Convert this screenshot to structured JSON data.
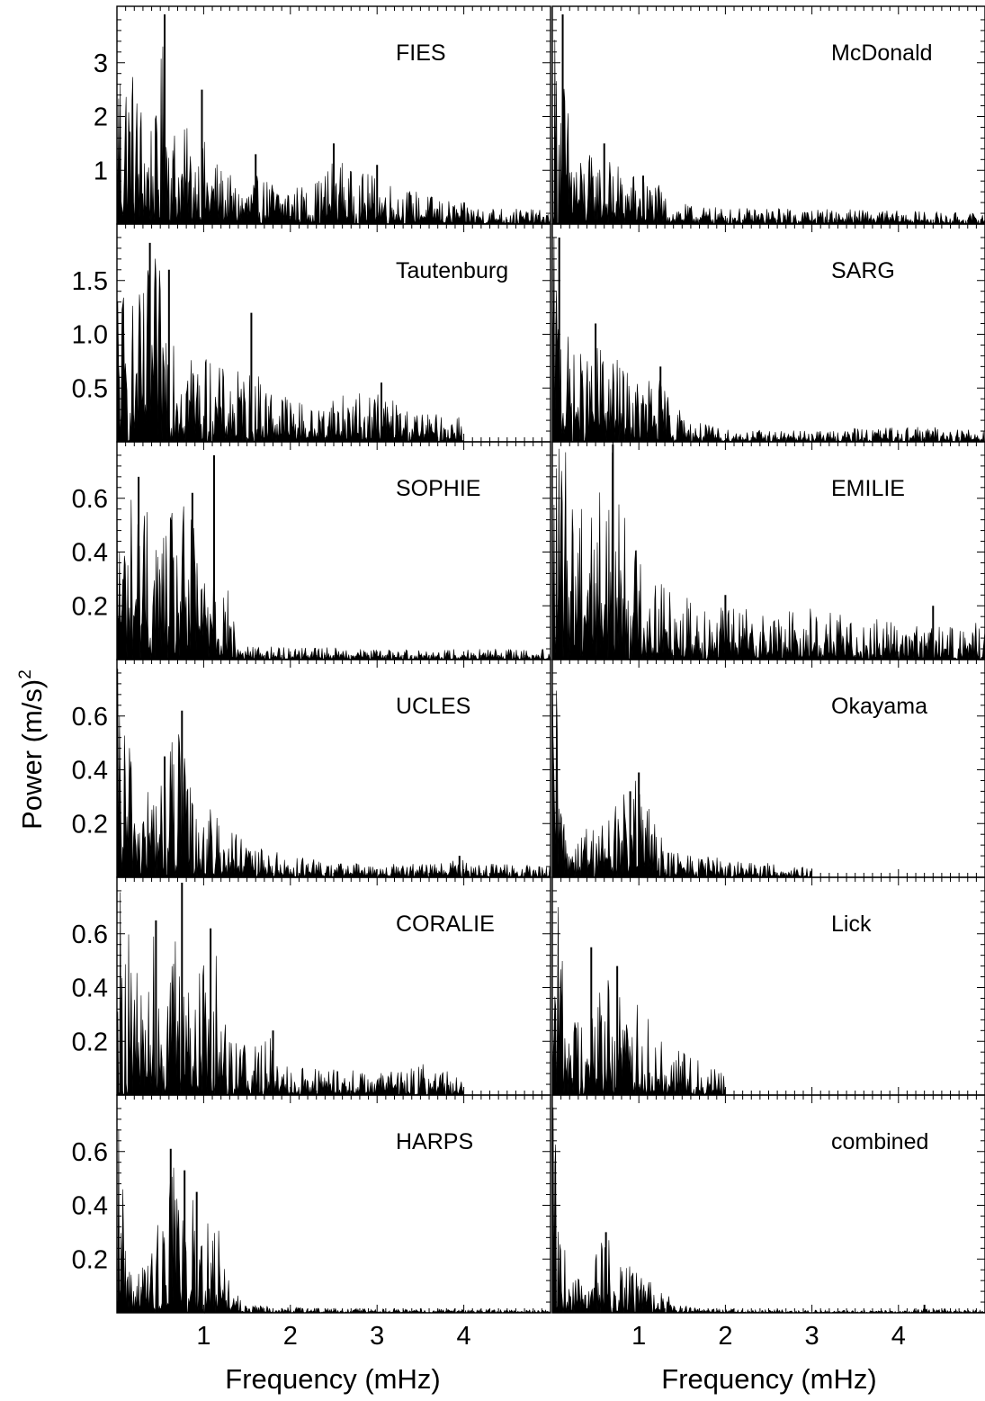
{
  "figure": {
    "ylabel": "Power (m/s)",
    "ylabel_superscript": "2",
    "xlabel_left": "Frequency (mHz)",
    "xlabel_right": "Frequency (mHz)",
    "x_tick_labels": [
      "1",
      "2",
      "3",
      "4"
    ]
  },
  "chart_data": [
    {
      "type": "line",
      "label": "FIES",
      "column": "left",
      "row": 0,
      "xlabel": "",
      "xlim": [
        0,
        5
      ],
      "ylim": [
        0,
        4.0
      ],
      "fmax": 5.0,
      "y_ticks": [
        1,
        2,
        3
      ],
      "y_tick_labels": [
        "1",
        "2",
        "3"
      ],
      "envelope": {
        "x": [
          0.0,
          0.1,
          0.2,
          0.3,
          0.45,
          0.55,
          0.65,
          0.8,
          1.0,
          1.2,
          1.4,
          1.6,
          1.8,
          2.0,
          2.2,
          2.4,
          2.5,
          2.7,
          2.9,
          3.1,
          3.3,
          3.5,
          3.8,
          4.2,
          4.6,
          5.0
        ],
        "y": [
          4.0,
          3.6,
          3.0,
          2.4,
          2.0,
          3.9,
          2.0,
          1.8,
          1.6,
          1.1,
          0.75,
          0.9,
          0.85,
          0.8,
          0.7,
          1.0,
          1.4,
          1.0,
          0.95,
          0.85,
          0.7,
          0.6,
          0.45,
          0.35,
          0.3,
          0.25
        ]
      },
      "peaks": [
        {
          "x": 0.55,
          "y": 3.9
        },
        {
          "x": 0.98,
          "y": 2.5
        },
        {
          "x": 1.6,
          "y": 1.3
        },
        {
          "x": 2.5,
          "y": 1.5
        },
        {
          "x": 3.0,
          "y": 1.1
        }
      ]
    },
    {
      "type": "line",
      "label": "McDonald",
      "column": "right",
      "row": 0,
      "xlabel": "",
      "xlim": [
        0,
        5
      ],
      "ylim": [
        0,
        4.0
      ],
      "fmax": 5.0,
      "y_ticks": [
        1,
        2,
        3
      ],
      "y_tick_labels": [],
      "envelope": {
        "x": [
          0.0,
          0.1,
          0.2,
          0.3,
          0.5,
          0.7,
          0.9,
          1.1,
          1.25,
          1.35,
          1.6,
          2.0,
          3.0,
          4.0,
          5.0
        ],
        "y": [
          4.0,
          3.5,
          2.0,
          1.4,
          1.3,
          1.2,
          1.0,
          0.9,
          0.7,
          0.45,
          0.35,
          0.3,
          0.3,
          0.25,
          0.2
        ]
      },
      "peaks": [
        {
          "x": 0.12,
          "y": 3.9
        },
        {
          "x": 0.6,
          "y": 1.5
        },
        {
          "x": 1.05,
          "y": 0.9
        }
      ]
    },
    {
      "type": "line",
      "label": "Tautenburg",
      "column": "left",
      "row": 1,
      "xlabel": "",
      "xlim": [
        0,
        5
      ],
      "ylim": [
        0,
        2.0
      ],
      "fmax": 4.0,
      "y_ticks": [
        0.5,
        1.0,
        1.5
      ],
      "y_tick_labels": [
        "0.5",
        "1.0",
        "1.5"
      ],
      "envelope": {
        "x": [
          0.0,
          0.1,
          0.3,
          0.4,
          0.55,
          0.7,
          0.9,
          1.1,
          1.3,
          1.5,
          1.7,
          2.0,
          2.3,
          2.5,
          2.8,
          3.0,
          3.3,
          3.6,
          4.0
        ],
        "y": [
          2.0,
          1.3,
          1.4,
          1.8,
          1.5,
          1.5,
          0.9,
          0.75,
          0.65,
          0.7,
          0.6,
          0.45,
          0.3,
          0.5,
          0.45,
          0.5,
          0.35,
          0.25,
          0.3
        ]
      },
      "peaks": [
        {
          "x": 0.38,
          "y": 1.85
        },
        {
          "x": 0.6,
          "y": 1.6
        },
        {
          "x": 1.55,
          "y": 1.2
        },
        {
          "x": 3.05,
          "y": 0.55
        }
      ]
    },
    {
      "type": "line",
      "label": "SARG",
      "column": "right",
      "row": 1,
      "xlabel": "",
      "xlim": [
        0,
        5
      ],
      "ylim": [
        0,
        2.0
      ],
      "fmax": 5.0,
      "y_ticks": [
        0.5,
        1.0,
        1.5
      ],
      "y_tick_labels": [],
      "envelope": {
        "x": [
          0.0,
          0.1,
          0.2,
          0.4,
          0.6,
          0.8,
          1.0,
          1.2,
          1.4,
          1.6,
          2.0,
          3.0,
          4.0,
          5.0
        ],
        "y": [
          2.0,
          1.5,
          0.9,
          0.8,
          1.0,
          0.7,
          0.6,
          0.65,
          0.4,
          0.2,
          0.12,
          0.1,
          0.15,
          0.12
        ]
      },
      "peaks": [
        {
          "x": 0.08,
          "y": 1.9
        },
        {
          "x": 0.5,
          "y": 1.1
        },
        {
          "x": 1.25,
          "y": 0.7
        }
      ]
    },
    {
      "type": "line",
      "label": "SOPHIE",
      "column": "left",
      "row": 2,
      "xlabel": "",
      "xlim": [
        0,
        5
      ],
      "ylim": [
        0,
        0.8
      ],
      "fmax": 5.0,
      "y_ticks": [
        0.2,
        0.4,
        0.6
      ],
      "y_tick_labels": [
        "0.2",
        "0.4",
        "0.6"
      ],
      "envelope": {
        "x": [
          0.0,
          0.1,
          0.2,
          0.3,
          0.5,
          0.6,
          0.8,
          1.0,
          1.1,
          1.2,
          1.4,
          1.6,
          2.0,
          3.0,
          4.0,
          5.0
        ],
        "y": [
          0.8,
          0.6,
          0.65,
          0.6,
          0.5,
          0.55,
          0.6,
          0.4,
          0.7,
          0.4,
          0.06,
          0.05,
          0.05,
          0.04,
          0.04,
          0.04
        ]
      },
      "peaks": [
        {
          "x": 0.25,
          "y": 0.68
        },
        {
          "x": 0.87,
          "y": 0.62
        },
        {
          "x": 1.12,
          "y": 0.76
        }
      ]
    },
    {
      "type": "line",
      "label": "EMILIE",
      "column": "right",
      "row": 2,
      "xlabel": "",
      "xlim": [
        0,
        5
      ],
      "ylim": [
        0,
        0.8
      ],
      "fmax": 5.0,
      "y_ticks": [
        0.2,
        0.4,
        0.6
      ],
      "y_tick_labels": [],
      "envelope": {
        "x": [
          0.0,
          0.1,
          0.3,
          0.5,
          0.7,
          0.9,
          1.1,
          1.3,
          1.5,
          1.8,
          2.1,
          2.5,
          3.0,
          3.5,
          4.0,
          4.5,
          5.0
        ],
        "y": [
          0.8,
          0.8,
          0.8,
          0.7,
          0.8,
          0.5,
          0.4,
          0.3,
          0.25,
          0.25,
          0.2,
          0.18,
          0.2,
          0.15,
          0.15,
          0.12,
          0.15
        ]
      },
      "peaks": [
        {
          "x": 0.7,
          "y": 0.8
        },
        {
          "x": 2.0,
          "y": 0.24
        },
        {
          "x": 4.4,
          "y": 0.2
        }
      ]
    },
    {
      "type": "line",
      "label": "UCLES",
      "column": "left",
      "row": 3,
      "xlabel": "",
      "xlim": [
        0,
        5
      ],
      "ylim": [
        0,
        0.8
      ],
      "fmax": 5.0,
      "y_ticks": [
        0.2,
        0.4,
        0.6
      ],
      "y_tick_labels": [
        "0.2",
        "0.4",
        "0.6"
      ],
      "envelope": {
        "x": [
          0.0,
          0.1,
          0.2,
          0.3,
          0.5,
          0.7,
          0.9,
          1.1,
          1.3,
          1.5,
          1.8,
          2.0,
          2.5,
          3.0,
          3.5,
          4.0,
          4.5,
          5.0
        ],
        "y": [
          0.8,
          0.6,
          0.45,
          0.35,
          0.4,
          0.6,
          0.3,
          0.25,
          0.2,
          0.12,
          0.1,
          0.08,
          0.06,
          0.05,
          0.05,
          0.07,
          0.05,
          0.04
        ]
      },
      "peaks": [
        {
          "x": 0.75,
          "y": 0.62
        },
        {
          "x": 0.55,
          "y": 0.45
        },
        {
          "x": 3.95,
          "y": 0.08
        }
      ]
    },
    {
      "type": "line",
      "label": "Okayama",
      "column": "right",
      "row": 3,
      "xlabel": "",
      "xlim": [
        0,
        5
      ],
      "ylim": [
        0,
        0.8
      ],
      "fmax": 3.0,
      "y_ticks": [
        0.2,
        0.4,
        0.6
      ],
      "y_tick_labels": [],
      "envelope": {
        "x": [
          0.0,
          0.05,
          0.1,
          0.2,
          0.4,
          0.6,
          0.8,
          1.0,
          1.2,
          1.4,
          1.8,
          2.2,
          2.6,
          3.0
        ],
        "y": [
          0.8,
          0.7,
          0.35,
          0.2,
          0.2,
          0.25,
          0.3,
          0.38,
          0.2,
          0.1,
          0.08,
          0.06,
          0.05,
          0.04
        ]
      },
      "peaks": [
        {
          "x": 1.0,
          "y": 0.39
        },
        {
          "x": 0.9,
          "y": 0.32
        }
      ]
    },
    {
      "type": "line",
      "label": "CORALIE",
      "column": "left",
      "row": 4,
      "xlabel": "",
      "xlim": [
        0,
        5
      ],
      "ylim": [
        0,
        0.8
      ],
      "fmax": 4.0,
      "y_ticks": [
        0.2,
        0.4,
        0.6
      ],
      "y_tick_labels": [
        "0.2",
        "0.4",
        "0.6"
      ],
      "envelope": {
        "x": [
          0.0,
          0.1,
          0.2,
          0.3,
          0.45,
          0.6,
          0.75,
          0.9,
          1.1,
          1.3,
          1.6,
          1.8,
          2.0,
          2.5,
          3.0,
          3.5,
          4.0
        ],
        "y": [
          0.8,
          0.75,
          0.5,
          0.4,
          0.65,
          0.45,
          0.8,
          0.45,
          0.6,
          0.3,
          0.2,
          0.22,
          0.12,
          0.1,
          0.09,
          0.12,
          0.08
        ]
      },
      "peaks": [
        {
          "x": 0.45,
          "y": 0.65
        },
        {
          "x": 0.75,
          "y": 0.79
        },
        {
          "x": 1.08,
          "y": 0.62
        },
        {
          "x": 1.8,
          "y": 0.24
        }
      ]
    },
    {
      "type": "line",
      "label": "Lick",
      "column": "right",
      "row": 4,
      "xlabel": "",
      "xlim": [
        0,
        5
      ],
      "ylim": [
        0,
        0.8
      ],
      "fmax": 2.0,
      "y_ticks": [
        0.2,
        0.4,
        0.6
      ],
      "y_tick_labels": [],
      "envelope": {
        "x": [
          0.0,
          0.1,
          0.2,
          0.4,
          0.6,
          0.8,
          1.0,
          1.2,
          1.4,
          1.6,
          1.8,
          2.0
        ],
        "y": [
          0.8,
          0.7,
          0.4,
          0.3,
          0.45,
          0.4,
          0.35,
          0.25,
          0.18,
          0.15,
          0.12,
          0.1
        ]
      },
      "peaks": [
        {
          "x": 0.45,
          "y": 0.55
        },
        {
          "x": 0.75,
          "y": 0.48
        }
      ]
    },
    {
      "type": "line",
      "label": "HARPS",
      "column": "left",
      "row": 5,
      "xlabel": "Frequency (mHz)",
      "xlim": [
        0,
        5
      ],
      "ylim": [
        0,
        0.8
      ],
      "fmax": 5.0,
      "y_ticks": [
        0.2,
        0.4,
        0.6
      ],
      "y_tick_labels": [
        "0.2",
        "0.4",
        "0.6"
      ],
      "envelope": {
        "x": [
          0.0,
          0.05,
          0.1,
          0.2,
          0.4,
          0.6,
          0.8,
          1.0,
          1.2,
          1.35,
          1.5,
          2.0,
          3.0,
          4.0,
          5.0
        ],
        "y": [
          0.8,
          0.8,
          0.3,
          0.15,
          0.25,
          0.6,
          0.5,
          0.35,
          0.3,
          0.1,
          0.03,
          0.02,
          0.015,
          0.015,
          0.01
        ]
      },
      "peaks": [
        {
          "x": 0.62,
          "y": 0.61
        },
        {
          "x": 0.78,
          "y": 0.53
        },
        {
          "x": 0.92,
          "y": 0.45
        }
      ]
    },
    {
      "type": "line",
      "label": "combined",
      "column": "right",
      "row": 5,
      "xlabel": "Frequency (mHz)",
      "xlim": [
        0,
        5
      ],
      "ylim": [
        0,
        0.8
      ],
      "fmax": 5.0,
      "y_ticks": [
        0.2,
        0.4,
        0.6
      ],
      "y_tick_labels": [],
      "envelope": {
        "x": [
          0.0,
          0.05,
          0.1,
          0.2,
          0.4,
          0.6,
          0.8,
          1.0,
          1.2,
          1.4,
          1.6,
          2.0,
          3.0,
          4.0,
          4.3,
          5.0
        ],
        "y": [
          0.8,
          0.7,
          0.3,
          0.15,
          0.12,
          0.3,
          0.2,
          0.15,
          0.1,
          0.05,
          0.02,
          0.015,
          0.01,
          0.01,
          0.02,
          0.01
        ]
      },
      "peaks": [
        {
          "x": 0.62,
          "y": 0.3
        },
        {
          "x": 4.3,
          "y": 0.03
        }
      ]
    }
  ]
}
